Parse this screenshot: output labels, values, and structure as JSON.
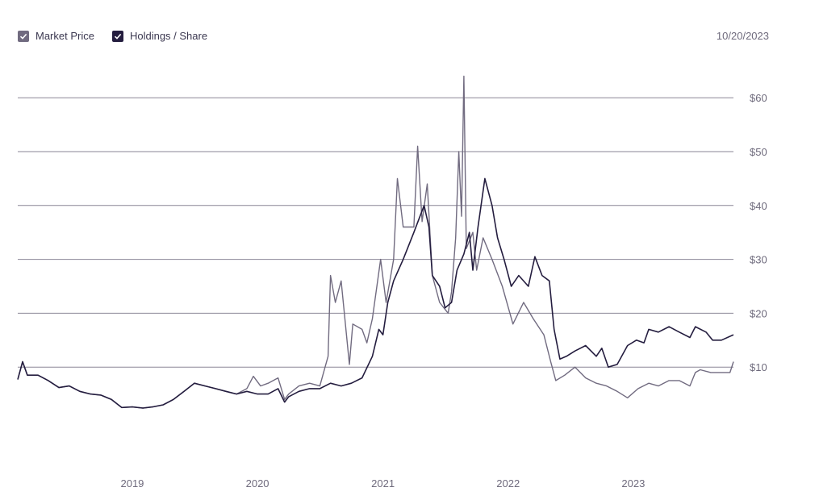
{
  "legend": {
    "items": [
      {
        "label": "Market Price",
        "color": "#716b80",
        "icon": "checkmark-icon"
      },
      {
        "label": "Holdings / Share",
        "color": "#241d3f",
        "icon": "checkmark-icon"
      }
    ]
  },
  "date_label": "10/20/2023",
  "chart_data": {
    "type": "line",
    "title": "",
    "xlabel": "",
    "ylabel": "",
    "x_ticks": [
      "2019",
      "2020",
      "2021",
      "2022",
      "2023"
    ],
    "y_ticks": [
      "$10",
      "$20",
      "$30",
      "$40",
      "$50",
      "$60"
    ],
    "ylim": [
      0,
      65
    ],
    "grid": true,
    "legend_position": "top-left",
    "series": [
      {
        "name": "Market Price",
        "color": "#716b80",
        "points": [
          [
            "2018-02-01",
            7.7
          ],
          [
            "2018-02-15",
            11.0
          ],
          [
            "2018-03-01",
            8.5
          ],
          [
            "2018-04-01",
            8.5
          ],
          [
            "2018-05-01",
            7.5
          ],
          [
            "2018-06-01",
            6.2
          ],
          [
            "2018-07-01",
            6.5
          ],
          [
            "2018-08-01",
            5.5
          ],
          [
            "2018-09-01",
            5.0
          ],
          [
            "2018-10-01",
            4.8
          ],
          [
            "2018-11-01",
            4.0
          ],
          [
            "2018-12-01",
            2.5
          ],
          [
            "2019-01-01",
            2.6
          ],
          [
            "2019-02-01",
            2.4
          ],
          [
            "2019-03-01",
            2.6
          ],
          [
            "2019-04-01",
            3.0
          ],
          [
            "2019-05-01",
            4.0
          ],
          [
            "2019-06-01",
            5.5
          ],
          [
            "2019-07-01",
            7.0
          ],
          [
            "2019-08-01",
            6.5
          ],
          [
            "2019-09-01",
            6.0
          ],
          [
            "2019-10-01",
            5.5
          ],
          [
            "2019-11-01",
            5.0
          ],
          [
            "2019-12-01",
            6.0
          ],
          [
            "2019-12-20",
            8.3
          ],
          [
            "2020-01-10",
            6.5
          ],
          [
            "2020-02-01",
            7.0
          ],
          [
            "2020-03-01",
            8.0
          ],
          [
            "2020-03-20",
            4.0
          ],
          [
            "2020-04-01",
            5.0
          ],
          [
            "2020-05-01",
            6.5
          ],
          [
            "2020-06-01",
            7.0
          ],
          [
            "2020-07-01",
            6.5
          ],
          [
            "2020-07-25",
            12.0
          ],
          [
            "2020-08-01",
            27.0
          ],
          [
            "2020-08-15",
            22.0
          ],
          [
            "2020-09-01",
            26.0
          ],
          [
            "2020-09-25",
            10.5
          ],
          [
            "2020-10-05",
            18.0
          ],
          [
            "2020-11-01",
            17.0
          ],
          [
            "2020-11-15",
            14.5
          ],
          [
            "2020-12-01",
            19.0
          ],
          [
            "2020-12-25",
            30.0
          ],
          [
            "2021-01-10",
            22.0
          ],
          [
            "2021-02-01",
            30.0
          ],
          [
            "2021-02-12",
            45.0
          ],
          [
            "2021-03-01",
            36.0
          ],
          [
            "2021-04-01",
            36.0
          ],
          [
            "2021-04-12",
            51.0
          ],
          [
            "2021-04-25",
            37.0
          ],
          [
            "2021-05-10",
            44.0
          ],
          [
            "2021-05-25",
            27.0
          ],
          [
            "2021-06-15",
            22.0
          ],
          [
            "2021-07-10",
            20.0
          ],
          [
            "2021-07-20",
            24.0
          ],
          [
            "2021-08-01",
            34.0
          ],
          [
            "2021-08-10",
            50.0
          ],
          [
            "2021-08-18",
            38.0
          ],
          [
            "2021-08-25",
            64.0
          ],
          [
            "2021-09-01",
            32.0
          ],
          [
            "2021-09-20",
            35.0
          ],
          [
            "2021-10-01",
            28.0
          ],
          [
            "2021-10-20",
            34.0
          ],
          [
            "2021-11-15",
            30.0
          ],
          [
            "2021-12-15",
            25.0
          ],
          [
            "2022-01-15",
            18.0
          ],
          [
            "2022-02-15",
            22.0
          ],
          [
            "2022-03-15",
            19.0
          ],
          [
            "2022-04-15",
            16.0
          ],
          [
            "2022-05-05",
            11.0
          ],
          [
            "2022-05-20",
            7.5
          ],
          [
            "2022-06-15",
            8.5
          ],
          [
            "2022-07-15",
            10.0
          ],
          [
            "2022-08-15",
            8.0
          ],
          [
            "2022-09-15",
            7.0
          ],
          [
            "2022-10-15",
            6.5
          ],
          [
            "2022-11-15",
            5.5
          ],
          [
            "2022-12-15",
            4.3
          ],
          [
            "2023-01-15",
            6.0
          ],
          [
            "2023-02-15",
            7.0
          ],
          [
            "2023-03-15",
            6.5
          ],
          [
            "2023-04-15",
            7.5
          ],
          [
            "2023-05-15",
            7.5
          ],
          [
            "2023-06-15",
            6.5
          ],
          [
            "2023-07-01",
            9.0
          ],
          [
            "2023-07-15",
            9.5
          ],
          [
            "2023-08-15",
            9.0
          ],
          [
            "2023-09-15",
            9.0
          ],
          [
            "2023-10-10",
            9.0
          ],
          [
            "2023-10-20",
            11.0
          ]
        ]
      },
      {
        "name": "Holdings / Share",
        "color": "#241d3f",
        "points": [
          [
            "2018-02-01",
            7.7
          ],
          [
            "2018-02-15",
            11.0
          ],
          [
            "2018-03-01",
            8.5
          ],
          [
            "2018-04-01",
            8.5
          ],
          [
            "2018-05-01",
            7.5
          ],
          [
            "2018-06-01",
            6.2
          ],
          [
            "2018-07-01",
            6.5
          ],
          [
            "2018-08-01",
            5.5
          ],
          [
            "2018-09-01",
            5.0
          ],
          [
            "2018-10-01",
            4.8
          ],
          [
            "2018-11-01",
            4.0
          ],
          [
            "2018-12-01",
            2.5
          ],
          [
            "2019-01-01",
            2.6
          ],
          [
            "2019-02-01",
            2.4
          ],
          [
            "2019-03-01",
            2.6
          ],
          [
            "2019-04-01",
            3.0
          ],
          [
            "2019-05-01",
            4.0
          ],
          [
            "2019-06-01",
            5.5
          ],
          [
            "2019-07-01",
            7.0
          ],
          [
            "2019-08-01",
            6.5
          ],
          [
            "2019-09-01",
            6.0
          ],
          [
            "2019-10-01",
            5.5
          ],
          [
            "2019-11-01",
            5.0
          ],
          [
            "2019-12-01",
            5.5
          ],
          [
            "2020-01-01",
            5.0
          ],
          [
            "2020-02-01",
            5.0
          ],
          [
            "2020-03-01",
            6.0
          ],
          [
            "2020-03-20",
            3.5
          ],
          [
            "2020-04-01",
            4.5
          ],
          [
            "2020-05-01",
            5.5
          ],
          [
            "2020-06-01",
            6.0
          ],
          [
            "2020-07-01",
            6.0
          ],
          [
            "2020-08-01",
            7.0
          ],
          [
            "2020-09-01",
            6.5
          ],
          [
            "2020-10-01",
            7.0
          ],
          [
            "2020-11-01",
            8.0
          ],
          [
            "2020-12-01",
            12.0
          ],
          [
            "2020-12-20",
            17.0
          ],
          [
            "2021-01-01",
            16.0
          ],
          [
            "2021-01-15",
            22.0
          ],
          [
            "2021-02-01",
            26.0
          ],
          [
            "2021-03-01",
            30.0
          ],
          [
            "2021-04-01",
            35.0
          ],
          [
            "2021-05-01",
            40.0
          ],
          [
            "2021-05-15",
            36.0
          ],
          [
            "2021-05-25",
            27.0
          ],
          [
            "2021-06-15",
            25.0
          ],
          [
            "2021-07-01",
            21.0
          ],
          [
            "2021-07-20",
            22.0
          ],
          [
            "2021-08-05",
            28.0
          ],
          [
            "2021-08-25",
            31.0
          ],
          [
            "2021-09-10",
            35.0
          ],
          [
            "2021-09-20",
            28.0
          ],
          [
            "2021-10-05",
            36.0
          ],
          [
            "2021-10-25",
            45.0
          ],
          [
            "2021-11-15",
            40.0
          ],
          [
            "2021-12-01",
            34.0
          ],
          [
            "2021-12-20",
            30.0
          ],
          [
            "2022-01-10",
            25.0
          ],
          [
            "2022-02-01",
            27.0
          ],
          [
            "2022-03-01",
            25.0
          ],
          [
            "2022-03-20",
            30.5
          ],
          [
            "2022-04-10",
            27.0
          ],
          [
            "2022-05-01",
            26.0
          ],
          [
            "2022-05-15",
            17.0
          ],
          [
            "2022-06-01",
            11.5
          ],
          [
            "2022-06-20",
            12.0
          ],
          [
            "2022-07-15",
            13.0
          ],
          [
            "2022-08-15",
            14.0
          ],
          [
            "2022-09-15",
            12.0
          ],
          [
            "2022-10-01",
            13.5
          ],
          [
            "2022-10-20",
            10.0
          ],
          [
            "2022-11-15",
            10.5
          ],
          [
            "2022-12-15",
            14.0
          ],
          [
            "2023-01-10",
            15.0
          ],
          [
            "2023-02-01",
            14.5
          ],
          [
            "2023-02-15",
            17.0
          ],
          [
            "2023-03-15",
            16.5
          ],
          [
            "2023-04-15",
            17.5
          ],
          [
            "2023-05-15",
            16.5
          ],
          [
            "2023-06-15",
            15.5
          ],
          [
            "2023-07-01",
            17.5
          ],
          [
            "2023-08-01",
            16.5
          ],
          [
            "2023-08-20",
            15.0
          ],
          [
            "2023-09-15",
            15.0
          ],
          [
            "2023-10-20",
            16.0
          ]
        ]
      }
    ]
  }
}
